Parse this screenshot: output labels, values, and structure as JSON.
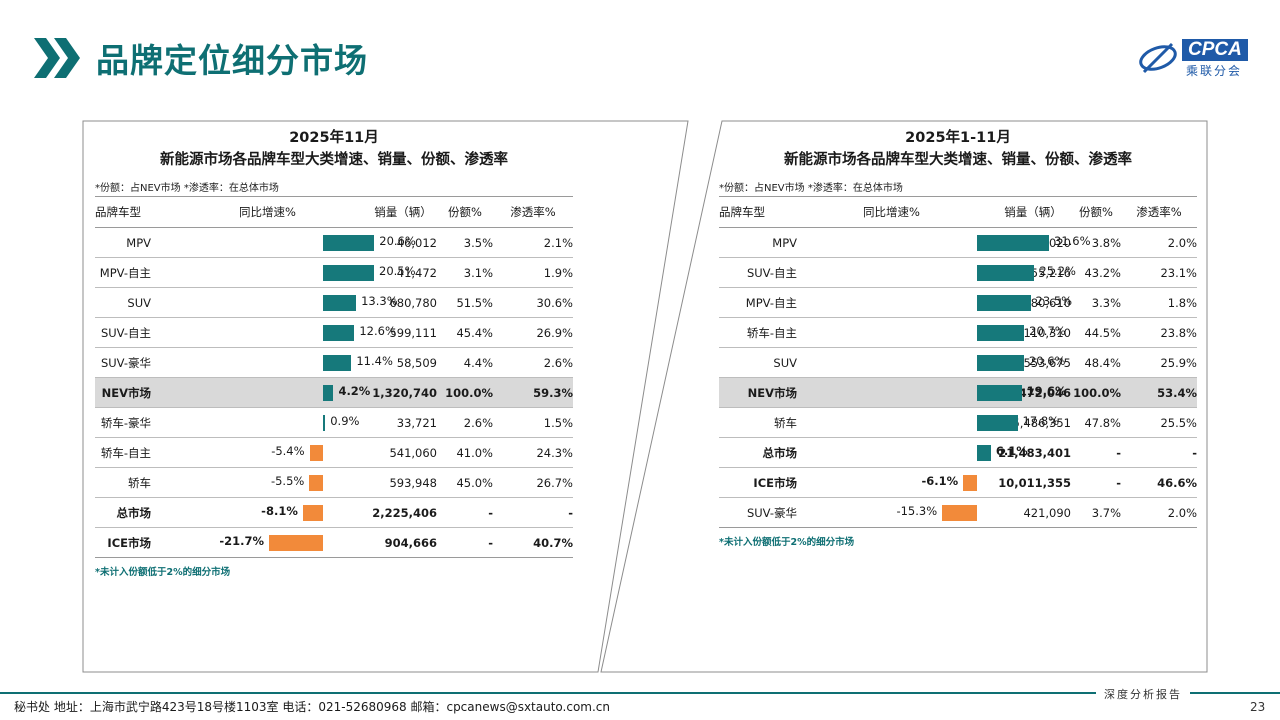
{
  "header": {
    "title": "品牌定位细分市场"
  },
  "logo": {
    "name": "CPCA",
    "sub": "乘联分会"
  },
  "colors": {
    "positive": "#16797b",
    "negative": "#f28a3a",
    "accent": "#0e6f73",
    "highlight_row": "#d9d9d9"
  },
  "columns": [
    "品牌车型",
    "同比增速%",
    "销量（辆）",
    "份额%",
    "渗透率%"
  ],
  "chart_data": [
    {
      "type": "table",
      "title": "2025年11月",
      "subtitle": "新能源市场各品牌车型大类增速、销量、份额、渗透率",
      "note": "*份额：占NEV市场   *渗透率：在总体市场",
      "footnote": "*未计入份额低于2%的细分市场",
      "growth_range": [
        -21.7,
        21.7
      ],
      "rows": [
        {
          "category": "MPV",
          "growth": 20.6,
          "growth_label": "20.6%",
          "sales": "46,012",
          "share": "3.5%",
          "penetration": "2.1%",
          "style": ""
        },
        {
          "category": "MPV-自主",
          "growth": 20.5,
          "growth_label": "20.5%",
          "sales": "41,472",
          "share": "3.1%",
          "penetration": "1.9%",
          "style": ""
        },
        {
          "category": "SUV",
          "growth": 13.3,
          "growth_label": "13.3%",
          "sales": "680,780",
          "share": "51.5%",
          "penetration": "30.6%",
          "style": ""
        },
        {
          "category": "SUV-自主",
          "growth": 12.6,
          "growth_label": "12.6%",
          "sales": "599,111",
          "share": "45.4%",
          "penetration": "26.9%",
          "style": ""
        },
        {
          "category": "SUV-豪华",
          "growth": 11.4,
          "growth_label": "11.4%",
          "sales": "58,509",
          "share": "4.4%",
          "penetration": "2.6%",
          "style": ""
        },
        {
          "category": "NEV市场",
          "growth": 4.2,
          "growth_label": "4.2%",
          "sales": "1,320,740",
          "share": "100.0%",
          "penetration": "59.3%",
          "style": "hl"
        },
        {
          "category": "轿车-豪华",
          "growth": 0.9,
          "growth_label": "0.9%",
          "sales": "33,721",
          "share": "2.6%",
          "penetration": "1.5%",
          "style": ""
        },
        {
          "category": "轿车-自主",
          "growth": -5.4,
          "growth_label": "-5.4%",
          "sales": "541,060",
          "share": "41.0%",
          "penetration": "24.3%",
          "style": ""
        },
        {
          "category": "轿车",
          "growth": -5.5,
          "growth_label": "-5.5%",
          "sales": "593,948",
          "share": "45.0%",
          "penetration": "26.7%",
          "style": ""
        },
        {
          "category": "总市场",
          "growth": -8.1,
          "growth_label": "-8.1%",
          "sales": "2,225,406",
          "share": "-",
          "penetration": "-",
          "style": "bold"
        },
        {
          "category": "ICE市场",
          "growth": -21.7,
          "growth_label": "-21.7%",
          "sales": "904,666",
          "share": "-",
          "penetration": "40.7%",
          "style": "bold"
        }
      ]
    },
    {
      "type": "table",
      "title": "2025年1-11月",
      "subtitle": "新能源市场各品牌车型大类增速、销量、份额、渗透率",
      "note": "*份额：占NEV市场   *渗透率：在总体市场",
      "footnote": "*未计入份额低于2%的细分市场",
      "growth_range": [
        -31.6,
        31.6
      ],
      "rows": [
        {
          "category": "MPV",
          "growth": 31.6,
          "growth_label": "31.6%",
          "sales": "432,020",
          "share": "3.8%",
          "penetration": "2.0%",
          "style": ""
        },
        {
          "category": "SUV-自主",
          "growth": 25.2,
          "growth_label": "25.2%",
          "sales": "4,955,216",
          "share": "43.2%",
          "penetration": "23.1%",
          "style": ""
        },
        {
          "category": "MPV-自主",
          "growth": 23.5,
          "growth_label": "23.5%",
          "sales": "380,610",
          "share": "3.3%",
          "penetration": "1.8%",
          "style": ""
        },
        {
          "category": "轿车-自主",
          "growth": 20.7,
          "growth_label": "20.7%",
          "sales": "5,110,310",
          "share": "44.5%",
          "penetration": "23.8%",
          "style": ""
        },
        {
          "category": "SUV",
          "growth": 20.6,
          "growth_label": "20.6%",
          "sales": "5,553,675",
          "share": "48.4%",
          "penetration": "25.9%",
          "style": ""
        },
        {
          "category": "NEV市场",
          "growth": 19.6,
          "growth_label": "19.6%",
          "sales": "11,472,046",
          "share": "100.0%",
          "penetration": "53.4%",
          "style": "hl"
        },
        {
          "category": "轿车",
          "growth": 17.8,
          "growth_label": "17.8%",
          "sales": "5,486,351",
          "share": "47.8%",
          "penetration": "25.5%",
          "style": ""
        },
        {
          "category": "总市场",
          "growth": 6.1,
          "growth_label": "6.1%",
          "sales": "21,483,401",
          "share": "-",
          "penetration": "-",
          "style": "bold"
        },
        {
          "category": "ICE市场",
          "growth": -6.1,
          "growth_label": "-6.1%",
          "sales": "10,011,355",
          "share": "-",
          "penetration": "46.6%",
          "style": "bold"
        },
        {
          "category": "SUV-豪华",
          "growth": -15.3,
          "growth_label": "-15.3%",
          "sales": "421,090",
          "share": "3.7%",
          "penetration": "2.0%",
          "style": ""
        }
      ]
    }
  ],
  "footer": {
    "contact": "秘书处    地址：上海市武宁路423号18号楼1103室   电话：021-52680968    邮箱：cpcanews@sxtauto.com.cn",
    "report_tag": "深度分析报告",
    "page": "23"
  }
}
